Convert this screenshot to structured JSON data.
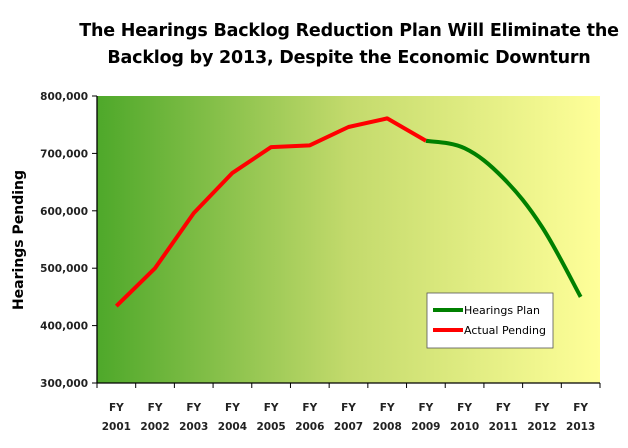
{
  "chart_data": {
    "type": "line",
    "title": "The Hearings Backlog Reduction Plan Will Eliminate the Backlog by 2013, Despite the Economic Downturn",
    "title_lines": [
      "The Hearings Backlog Reduction Plan Will Eliminate the",
      "Backlog by 2013, Despite the Economic Downturn"
    ],
    "xlabel": "",
    "ylabel": "Hearings Pending",
    "categories": [
      [
        "FY",
        "2001"
      ],
      [
        "FY",
        "2002"
      ],
      [
        "FY",
        "2003"
      ],
      [
        "FY",
        "2004"
      ],
      [
        "FY",
        "2005"
      ],
      [
        "FY",
        "2006"
      ],
      [
        "FY",
        "2007"
      ],
      [
        "FY",
        "2008"
      ],
      [
        "FY",
        "2009"
      ],
      [
        "FY",
        "2010"
      ],
      [
        "FY",
        "2011"
      ],
      [
        "FY",
        "2012"
      ],
      [
        "FY",
        "2013"
      ]
    ],
    "ylim": [
      300000,
      800000
    ],
    "yticks": [
      300000,
      400000,
      500000,
      600000,
      700000,
      800000
    ],
    "ytick_labels": [
      "300,000",
      "400,000",
      "500,000",
      "600,000",
      "700,000",
      "800,000"
    ],
    "grid": false,
    "background": "horizontal gradient from green to light yellow",
    "legend_position": "bottom-right",
    "series": [
      {
        "name": "Actual Pending",
        "color": "#ff0000",
        "smooth": false,
        "values": [
          434000,
          500000,
          596000,
          666000,
          711000,
          714000,
          746000,
          761000,
          722000,
          null,
          null,
          null,
          null
        ]
      },
      {
        "name": "Hearings Plan",
        "color": "#008000",
        "smooth": true,
        "values": [
          null,
          null,
          null,
          null,
          null,
          null,
          null,
          null,
          722000,
          709000,
          657000,
          572000,
          450000
        ]
      }
    ],
    "legend": [
      "Hearings Plan",
      "Actual Pending"
    ]
  },
  "colors": {
    "gradient_left": "#4ea82a",
    "gradient_mid": "#c3da6c",
    "gradient_right": "#ffff99"
  }
}
